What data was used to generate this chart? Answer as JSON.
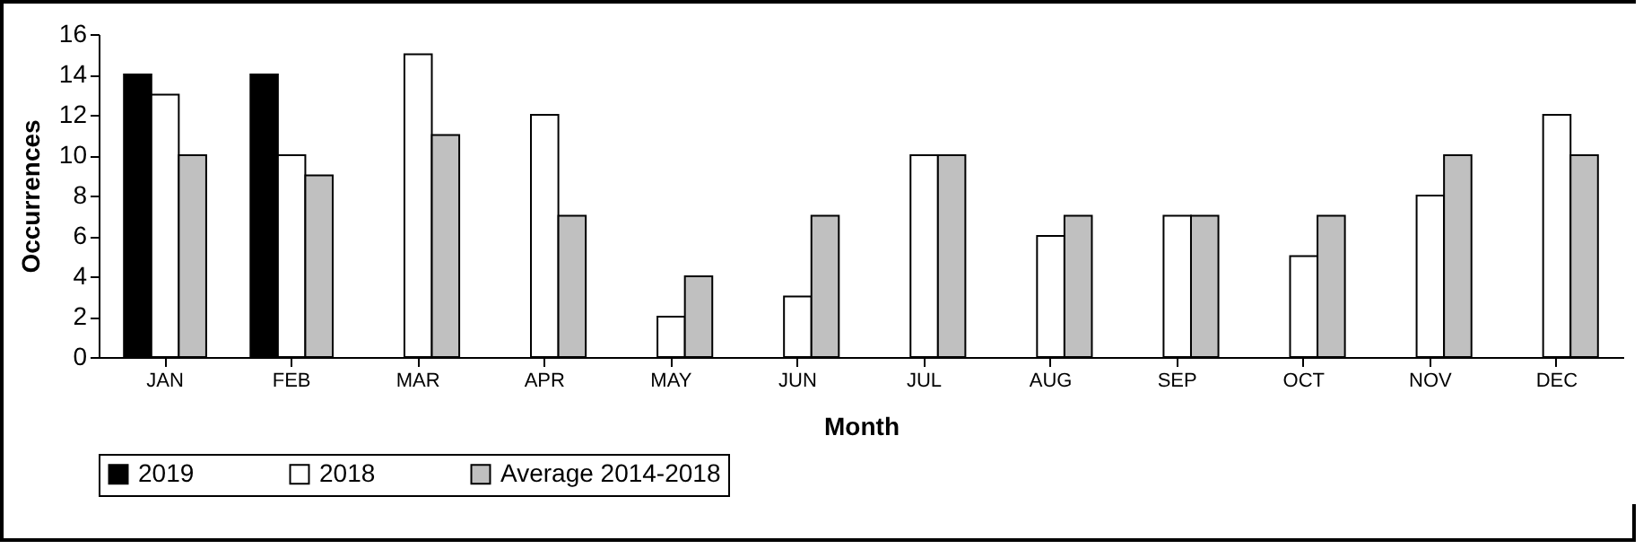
{
  "chart_data": {
    "type": "bar",
    "xlabel": "Month",
    "ylabel": "Occurrences",
    "categories": [
      "JAN",
      "FEB",
      "MAR",
      "APR",
      "MAY",
      "JUN",
      "JUL",
      "AUG",
      "SEP",
      "OCT",
      "NOV",
      "DEC"
    ],
    "series": [
      {
        "name": "2019",
        "color": "#000000",
        "values": [
          14,
          14,
          null,
          null,
          null,
          null,
          null,
          null,
          null,
          null,
          null,
          null
        ]
      },
      {
        "name": "2018",
        "color": "#ffffff",
        "values": [
          13,
          10,
          15,
          12,
          2,
          3,
          10,
          6,
          7,
          5,
          8,
          12
        ]
      },
      {
        "name": "Average 2014-2018",
        "color": "#c0c0c0",
        "values": [
          10,
          9,
          11,
          7,
          4,
          7,
          10,
          7,
          7,
          7,
          10,
          10
        ]
      }
    ],
    "ylim": [
      0,
      16
    ],
    "yticks": [
      0,
      2,
      4,
      6,
      8,
      10,
      12,
      14,
      16
    ],
    "grid": false,
    "legend": "bottom"
  }
}
